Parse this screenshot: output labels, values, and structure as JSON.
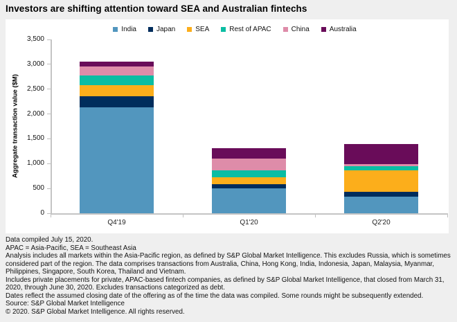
{
  "header": {
    "title": "Investors are shifting attention toward SEA and Australian fintechs"
  },
  "chart_data": {
    "type": "bar",
    "stacked": true,
    "title": "Investors are shifting attention toward SEA and Australian fintechs",
    "categories": [
      "Q4'19",
      "Q1'20",
      "Q2'20"
    ],
    "series": [
      {
        "name": "India",
        "color": "#5296BE",
        "values": [
          2130,
          505,
          330
        ]
      },
      {
        "name": "Japan",
        "color": "#002D5C",
        "values": [
          220,
          75,
          100
        ]
      },
      {
        "name": "SEA",
        "color": "#FCAE1B",
        "values": [
          230,
          150,
          430
        ]
      },
      {
        "name": "Rest of APAC",
        "color": "#0BBDA3",
        "values": [
          190,
          140,
          90
        ]
      },
      {
        "name": "China",
        "color": "#DE8CA9",
        "values": [
          180,
          225,
          40
        ]
      },
      {
        "name": "Australia",
        "color": "#690C59",
        "values": [
          100,
          215,
          400
        ]
      }
    ],
    "totals": [
      3050,
      1310,
      1390
    ],
    "xlabel": "",
    "ylabel": "Aggregate transaction value ($M)",
    "ylim": [
      0,
      3500
    ],
    "y_tick_step": 500,
    "y_tick_labels": [
      "0",
      "500",
      "1,000",
      "1,500",
      "2,000",
      "2,500",
      "3,000",
      "3,500"
    ],
    "grid": false,
    "legend_position": "top"
  },
  "footer": {
    "lines": [
      "Data compiled July 15, 2020.",
      "APAC = Asia-Pacific, SEA = Southeast Asia",
      "Analysis includes all markets within the Asia-Pacific region, as defined by S&P Global Market Intelligence. This excludes Russia, which is sometimes considered part of the region. The data comprises transactions from Australia, China, Hong Kong, India, Indonesia, Japan, Malaysia, Myanmar, Philippines, Singapore, South Korea, Thailand and Vietnam.",
      "Includes private placements for private, APAC-based fintech companies, as defined by S&P Global Market Intelligence, that closed from March 31, 2020, through June 30, 2020. Excludes transactions categorized as debt.",
      "Dates reflect the assumed closing date of the offering as of the time the data was compiled. Some rounds might be subsequently extended.",
      "Source: S&P Global Market Intelligence",
      "© 2020. S&P Global Market Intelligence. All rights reserved."
    ]
  },
  "colors": {
    "background": "#EFEFEF",
    "panel": "#FFFFFF",
    "axis": "#C4C4C4",
    "text": "#111111"
  }
}
